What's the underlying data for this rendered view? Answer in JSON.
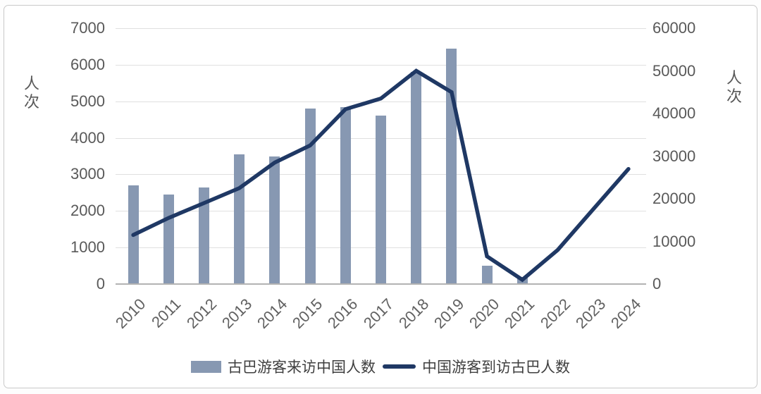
{
  "chart_data": {
    "type": "bar-line-combo",
    "categories": [
      "2010",
      "2011",
      "2012",
      "2013",
      "2014",
      "2015",
      "2016",
      "2017",
      "2018",
      "2019",
      "2020",
      "2021",
      "2022",
      "2023",
      "2024"
    ],
    "series": [
      {
        "name": "古巴游客来访中国人数",
        "type": "bar",
        "axis": "left",
        "values": [
          2700,
          2450,
          2650,
          3550,
          3500,
          4800,
          4850,
          4600,
          5800,
          6450,
          500,
          200,
          null,
          null,
          null
        ]
      },
      {
        "name": "中国游客到访古巴人数",
        "type": "line",
        "axis": "right",
        "values": [
          11500,
          15500,
          19000,
          22500,
          28500,
          32500,
          41000,
          43500,
          50000,
          45000,
          6500,
          1000,
          8000,
          17500,
          27000
        ]
      }
    ],
    "left_axis": {
      "title": "人次",
      "min": 0,
      "max": 7000,
      "step": 1000,
      "ticks": [
        "0",
        "1000",
        "2000",
        "3000",
        "4000",
        "5000",
        "6000",
        "7000"
      ]
    },
    "right_axis": {
      "title": "人次",
      "min": 0,
      "max": 60000,
      "step": 10000,
      "ticks": [
        "0",
        "10000",
        "20000",
        "30000",
        "40000",
        "50000",
        "60000"
      ]
    },
    "legend": [
      {
        "label": "古巴游客来访中国人数",
        "marker": "bar"
      },
      {
        "label": "中国游客到访古巴人数",
        "marker": "line"
      }
    ],
    "grid": true,
    "legend_position": "bottom",
    "colors": {
      "bar": "#8798b2",
      "line": "#1f3864",
      "gridline": "#e0e0e0",
      "axis_line": "#b3b3b3",
      "tick_text": "#595959",
      "legend_text": "#3f3f3f",
      "card_border": "#c9c9c9",
      "background": "#ffffff"
    }
  }
}
